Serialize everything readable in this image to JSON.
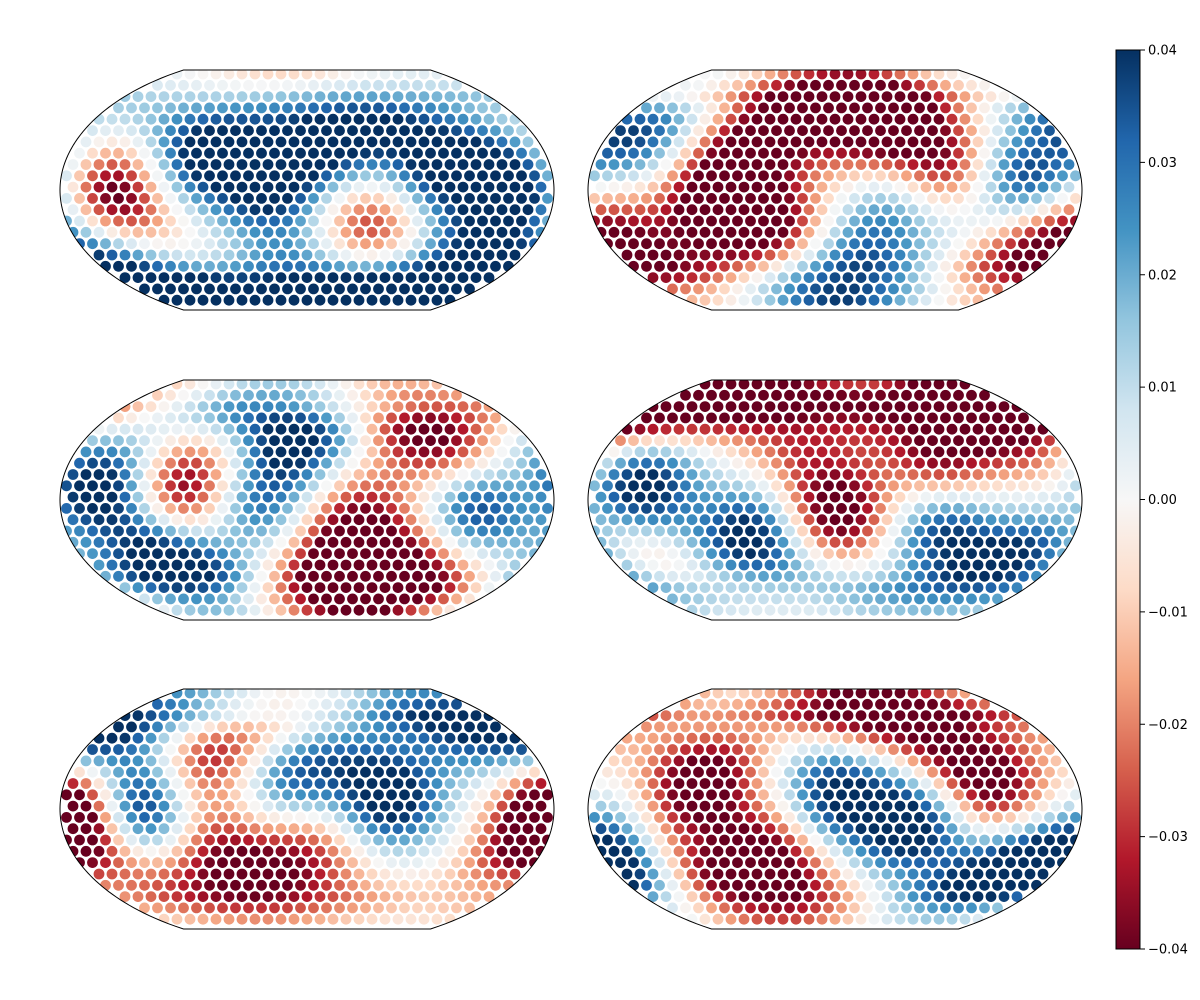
{
  "figure": {
    "panel_count": 6,
    "layout": "3 rows x 2 columns",
    "projection": "Kavrayskiy VII"
  },
  "colorbar": {
    "colormap": "RdBu",
    "vmin": -0.04,
    "vmax": 0.04,
    "ticks": [
      -0.04,
      -0.03,
      -0.02,
      -0.01,
      0.0,
      0.01,
      0.02,
      0.03,
      0.04
    ],
    "tick_labels": [
      "−0.04",
      "−0.03",
      "−0.02",
      "−0.01",
      "0.00",
      "0.01",
      "0.02",
      "0.03",
      "0.04"
    ],
    "stops": [
      "#67001f",
      "#b2182b",
      "#d6604d",
      "#f4a582",
      "#fddbc7",
      "#f7f7f7",
      "#d1e5f0",
      "#92c5de",
      "#4393c3",
      "#2166ac",
      "#053061"
    ]
  },
  "chart_data": [
    {
      "type": "scatter",
      "panel": "row1-left",
      "description_of_values": "point color encodes value on colorbar scale",
      "value_range": [
        -0.04,
        0.04
      ],
      "blobs": [
        {
          "lon": -140,
          "lat": -5,
          "value": -0.04
        },
        {
          "lon": -85,
          "lat": 30,
          "value": 0.035
        },
        {
          "lon": -30,
          "lat": 10,
          "value": 0.04
        },
        {
          "lon": 20,
          "lat": 40,
          "value": 0.035
        },
        {
          "lon": 45,
          "lat": -30,
          "value": -0.03
        },
        {
          "lon": 95,
          "lat": 20,
          "value": 0.035
        },
        {
          "lon": 150,
          "lat": 0,
          "value": 0.04
        },
        {
          "lon": 0,
          "lat": -70,
          "value": 0.035
        },
        {
          "lon": -20,
          "lat": 75,
          "value": -0.02
        },
        {
          "lon": 120,
          "lat": -65,
          "value": 0.03
        },
        {
          "lon": -160,
          "lat": -60,
          "value": 0.03
        }
      ]
    },
    {
      "type": "scatter",
      "panel": "row1-right",
      "value_range": [
        -0.04,
        0.04
      ],
      "blobs": [
        {
          "lon": -90,
          "lat": -10,
          "value": -0.04
        },
        {
          "lon": -60,
          "lat": 40,
          "value": -0.035
        },
        {
          "lon": 20,
          "lat": 55,
          "value": -0.04
        },
        {
          "lon": 80,
          "lat": 30,
          "value": -0.035
        },
        {
          "lon": -40,
          "lat": -30,
          "value": -0.03
        },
        {
          "lon": 140,
          "lat": 10,
          "value": 0.035
        },
        {
          "lon": 0,
          "lat": -70,
          "value": 0.04
        },
        {
          "lon": -150,
          "lat": 40,
          "value": 0.03
        },
        {
          "lon": 160,
          "lat": -40,
          "value": -0.03
        },
        {
          "lon": 40,
          "lat": -20,
          "value": 0.02
        },
        {
          "lon": -160,
          "lat": -30,
          "value": -0.02
        }
      ]
    },
    {
      "type": "scatter",
      "panel": "row2-left",
      "value_range": [
        -0.04,
        0.04
      ],
      "blobs": [
        {
          "lon": -150,
          "lat": 10,
          "value": 0.04
        },
        {
          "lon": -90,
          "lat": 10,
          "value": -0.04
        },
        {
          "lon": -10,
          "lat": 50,
          "value": 0.04
        },
        {
          "lon": 100,
          "lat": 50,
          "value": -0.04
        },
        {
          "lon": 30,
          "lat": -50,
          "value": -0.04
        },
        {
          "lon": 90,
          "lat": -55,
          "value": -0.035
        },
        {
          "lon": -110,
          "lat": -50,
          "value": 0.04
        },
        {
          "lon": 120,
          "lat": -10,
          "value": 0.035
        },
        {
          "lon": -40,
          "lat": -5,
          "value": 0.025
        },
        {
          "lon": 40,
          "lat": -10,
          "value": -0.02
        }
      ]
    },
    {
      "type": "scatter",
      "panel": "row2-right",
      "value_range": [
        -0.04,
        0.04
      ],
      "blobs": [
        {
          "lon": -140,
          "lat": 10,
          "value": 0.04
        },
        {
          "lon": -60,
          "lat": -30,
          "value": 0.04
        },
        {
          "lon": 0,
          "lat": -10,
          "value": -0.04
        },
        {
          "lon": 80,
          "lat": 30,
          "value": -0.035
        },
        {
          "lon": 80,
          "lat": -20,
          "value": 0.035
        },
        {
          "lon": 150,
          "lat": -50,
          "value": 0.035
        },
        {
          "lon": -120,
          "lat": 75,
          "value": -0.035
        },
        {
          "lon": 150,
          "lat": 60,
          "value": -0.035
        },
        {
          "lon": -30,
          "lat": 50,
          "value": -0.02
        },
        {
          "lon": -150,
          "lat": -50,
          "value": -0.02
        }
      ]
    },
    {
      "type": "scatter",
      "panel": "row3-left",
      "value_range": [
        -0.04,
        0.04
      ],
      "blobs": [
        {
          "lon": -170,
          "lat": -5,
          "value": -0.04
        },
        {
          "lon": -120,
          "lat": 0,
          "value": 0.04
        },
        {
          "lon": -80,
          "lat": 45,
          "value": -0.04
        },
        {
          "lon": -70,
          "lat": -40,
          "value": -0.035
        },
        {
          "lon": 60,
          "lat": 10,
          "value": 0.04
        },
        {
          "lon": 0,
          "lat": -30,
          "value": -0.03
        },
        {
          "lon": -10,
          "lat": 20,
          "value": 0.03
        },
        {
          "lon": 170,
          "lat": -10,
          "value": -0.035
        },
        {
          "lon": -140,
          "lat": 55,
          "value": 0.03
        },
        {
          "lon": 150,
          "lat": 50,
          "value": 0.03
        }
      ]
    },
    {
      "type": "scatter",
      "panel": "row3-right",
      "value_range": [
        -0.04,
        0.04
      ],
      "blobs": [
        {
          "lon": -100,
          "lat": 20,
          "value": -0.04
        },
        {
          "lon": -50,
          "lat": -40,
          "value": -0.04
        },
        {
          "lon": 0,
          "lat": 10,
          "value": 0.035
        },
        {
          "lon": 60,
          "lat": -10,
          "value": 0.04
        },
        {
          "lon": 100,
          "lat": 30,
          "value": -0.035
        },
        {
          "lon": -170,
          "lat": -40,
          "value": 0.04
        },
        {
          "lon": 140,
          "lat": -40,
          "value": 0.035
        },
        {
          "lon": 40,
          "lat": 80,
          "value": -0.035
        },
        {
          "lon": -120,
          "lat": -60,
          "value": -0.03
        },
        {
          "lon": 130,
          "lat": 5,
          "value": -0.02
        }
      ]
    }
  ]
}
